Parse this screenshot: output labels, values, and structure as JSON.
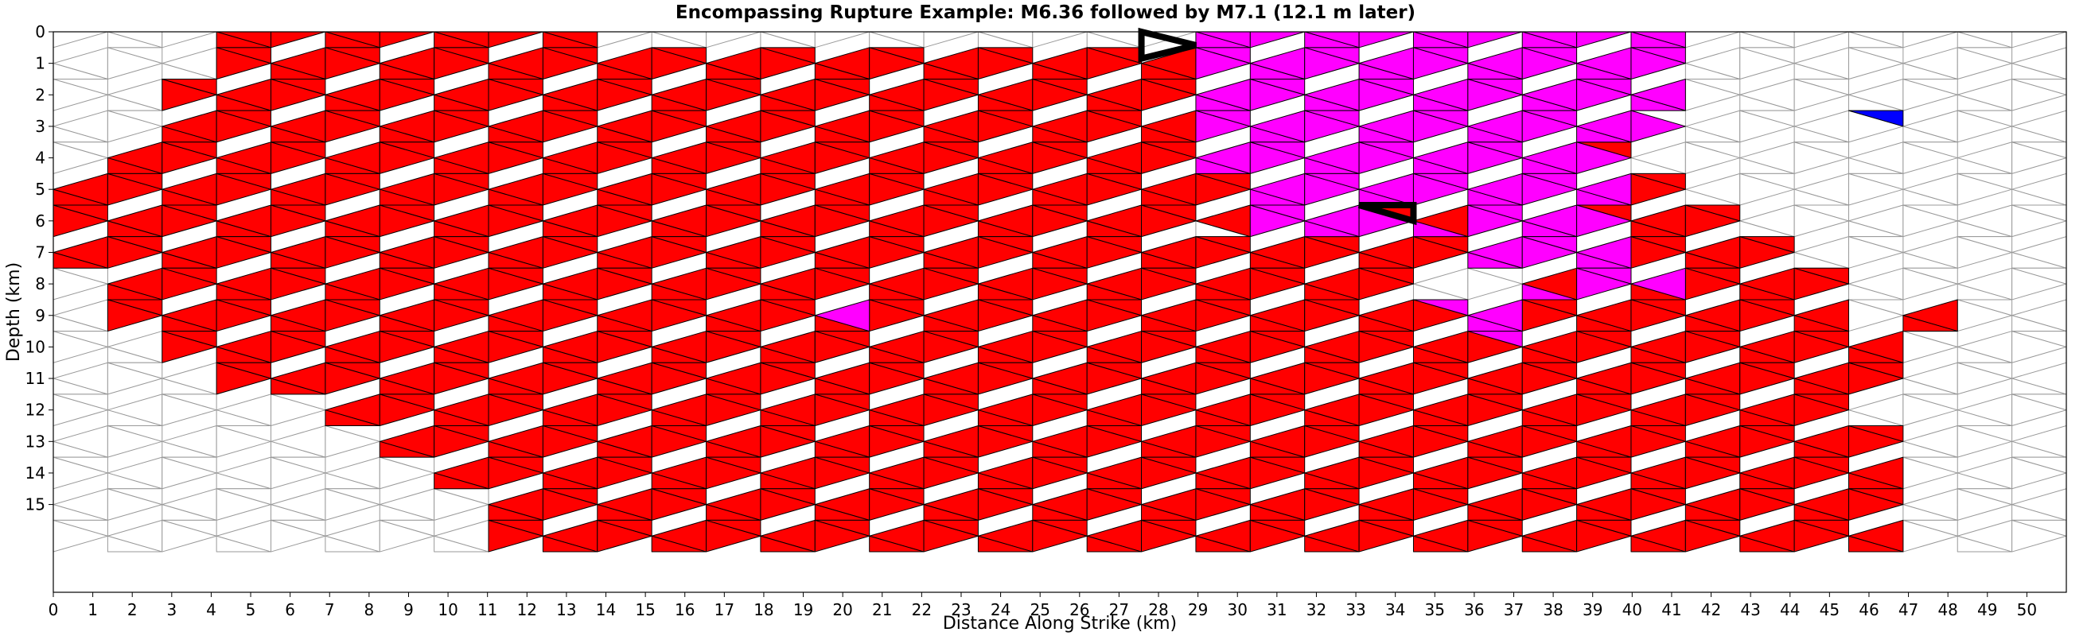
{
  "chart_data": {
    "type": "heatmap",
    "title": "Encompassing Rupture Example: M6.36 followed by M7.1 (12.1 m later)",
    "xlabel": "Distance Along Strike (km)",
    "ylabel": "Depth (km)",
    "xlim": [
      0,
      51
    ],
    "ylim": [
      15.6,
      0
    ],
    "xticks": [
      "0",
      "1",
      "2",
      "3",
      "4",
      "5",
      "6",
      "7",
      "8",
      "9",
      "10",
      "11",
      "12",
      "13",
      "14",
      "15",
      "16",
      "17",
      "18",
      "19",
      "20",
      "21",
      "22",
      "23",
      "24",
      "25",
      "26",
      "27",
      "28",
      "29",
      "30",
      "31",
      "32",
      "33",
      "34",
      "35",
      "36",
      "37",
      "38",
      "39",
      "40",
      "41",
      "42",
      "43",
      "44",
      "45",
      "46",
      "47",
      "48",
      "49",
      "50"
    ],
    "yticks": [
      "0",
      "1",
      "2",
      "3",
      "4",
      "5",
      "6",
      "7",
      "8",
      "9",
      "10",
      "11",
      "12",
      "13",
      "14",
      "15"
    ],
    "colors": {
      "red": "#ff0000",
      "magenta": "#ff00ff",
      "blue": "#0000ff",
      "white": "#ffffff",
      "red_edge": "#000000",
      "white_edge": "#999999",
      "marker": "#000000"
    },
    "mesh": {
      "columns": 37,
      "rows": 17,
      "col_width_km": 1.39,
      "row_height_km": 0.9
    },
    "regions": {
      "red_col_ranges": [
        [
          3,
          9
        ],
        [
          3,
          28
        ],
        [
          2,
          28
        ],
        [
          2,
          28
        ],
        [
          1,
          28
        ],
        [
          0,
          29
        ],
        [
          0,
          30
        ],
        [
          0,
          31
        ],
        [
          1,
          32
        ],
        [
          1,
          32
        ],
        [
          2,
          33
        ],
        [
          3,
          33
        ],
        [
          5,
          33
        ],
        [
          6,
          33
        ],
        [
          7,
          33
        ],
        [
          8,
          33
        ],
        [
          8,
          33
        ]
      ],
      "magenta_triangles": [
        [
          0,
          21,
          "d"
        ],
        [
          0,
          21,
          "u"
        ],
        [
          0,
          22,
          "d"
        ],
        [
          0,
          22,
          "u"
        ],
        [
          0,
          23,
          "d"
        ],
        [
          0,
          23,
          "u"
        ],
        [
          0,
          24,
          "d"
        ],
        [
          0,
          24,
          "u"
        ],
        [
          0,
          25,
          "d"
        ],
        [
          0,
          25,
          "u"
        ],
        [
          0,
          26,
          "d"
        ],
        [
          0,
          26,
          "u"
        ],
        [
          0,
          27,
          "d"
        ],
        [
          0,
          27,
          "u"
        ],
        [
          0,
          28,
          "d"
        ],
        [
          0,
          28,
          "u"
        ],
        [
          0,
          29,
          "d"
        ],
        [
          0,
          29,
          "u"
        ],
        [
          1,
          21,
          "d"
        ],
        [
          1,
          21,
          "u"
        ],
        [
          1,
          22,
          "d"
        ],
        [
          1,
          22,
          "u"
        ],
        [
          1,
          23,
          "d"
        ],
        [
          1,
          23,
          "u"
        ],
        [
          1,
          24,
          "d"
        ],
        [
          1,
          24,
          "u"
        ],
        [
          1,
          25,
          "d"
        ],
        [
          1,
          25,
          "u"
        ],
        [
          1,
          26,
          "d"
        ],
        [
          1,
          26,
          "u"
        ],
        [
          1,
          27,
          "d"
        ],
        [
          1,
          27,
          "u"
        ],
        [
          1,
          28,
          "d"
        ],
        [
          1,
          28,
          "u"
        ],
        [
          1,
          29,
          "d"
        ],
        [
          1,
          29,
          "u"
        ],
        [
          2,
          21,
          "d"
        ],
        [
          2,
          21,
          "u"
        ],
        [
          2,
          22,
          "d"
        ],
        [
          2,
          22,
          "u"
        ],
        [
          2,
          23,
          "d"
        ],
        [
          2,
          23,
          "u"
        ],
        [
          2,
          24,
          "d"
        ],
        [
          2,
          24,
          "u"
        ],
        [
          2,
          25,
          "d"
        ],
        [
          2,
          25,
          "u"
        ],
        [
          2,
          26,
          "d"
        ],
        [
          2,
          26,
          "u"
        ],
        [
          2,
          27,
          "d"
        ],
        [
          2,
          27,
          "u"
        ],
        [
          2,
          28,
          "d"
        ],
        [
          2,
          28,
          "u"
        ],
        [
          2,
          29,
          "d"
        ],
        [
          2,
          29,
          "u"
        ],
        [
          3,
          21,
          "d"
        ],
        [
          3,
          21,
          "u"
        ],
        [
          3,
          22,
          "d"
        ],
        [
          3,
          22,
          "u"
        ],
        [
          3,
          23,
          "d"
        ],
        [
          3,
          23,
          "u"
        ],
        [
          3,
          24,
          "d"
        ],
        [
          3,
          24,
          "u"
        ],
        [
          3,
          25,
          "d"
        ],
        [
          3,
          25,
          "u"
        ],
        [
          3,
          26,
          "d"
        ],
        [
          3,
          26,
          "u"
        ],
        [
          3,
          27,
          "d"
        ],
        [
          3,
          27,
          "u"
        ],
        [
          3,
          28,
          "d"
        ],
        [
          3,
          28,
          "u"
        ],
        [
          3,
          29,
          "d"
        ],
        [
          4,
          21,
          "d"
        ],
        [
          4,
          21,
          "u"
        ],
        [
          4,
          22,
          "d"
        ],
        [
          4,
          22,
          "u"
        ],
        [
          4,
          23,
          "d"
        ],
        [
          4,
          23,
          "u"
        ],
        [
          4,
          24,
          "d"
        ],
        [
          4,
          24,
          "u"
        ],
        [
          4,
          25,
          "d"
        ],
        [
          4,
          25,
          "u"
        ],
        [
          4,
          26,
          "d"
        ],
        [
          4,
          26,
          "u"
        ],
        [
          4,
          27,
          "d"
        ],
        [
          4,
          27,
          "u"
        ],
        [
          4,
          28,
          "d"
        ],
        [
          5,
          22,
          "d"
        ],
        [
          5,
          22,
          "u"
        ],
        [
          5,
          23,
          "d"
        ],
        [
          5,
          23,
          "u"
        ],
        [
          5,
          24,
          "d"
        ],
        [
          5,
          24,
          "u"
        ],
        [
          5,
          25,
          "d"
        ],
        [
          5,
          25,
          "u"
        ],
        [
          5,
          26,
          "d"
        ],
        [
          5,
          26,
          "u"
        ],
        [
          5,
          27,
          "d"
        ],
        [
          5,
          27,
          "u"
        ],
        [
          5,
          28,
          "d"
        ],
        [
          5,
          28,
          "u"
        ],
        [
          6,
          22,
          "d"
        ],
        [
          6,
          22,
          "u"
        ],
        [
          6,
          23,
          "d"
        ],
        [
          6,
          23,
          "u"
        ],
        [
          6,
          24,
          "d"
        ],
        [
          6,
          25,
          "u"
        ],
        [
          6,
          26,
          "d"
        ],
        [
          6,
          26,
          "u"
        ],
        [
          6,
          27,
          "d"
        ],
        [
          6,
          27,
          "u"
        ],
        [
          6,
          28,
          "d"
        ],
        [
          7,
          26,
          "d"
        ],
        [
          7,
          26,
          "u"
        ],
        [
          7,
          27,
          "d"
        ],
        [
          7,
          27,
          "u"
        ],
        [
          7,
          28,
          "d"
        ],
        [
          7,
          28,
          "u"
        ],
        [
          8,
          27,
          "u"
        ],
        [
          8,
          28,
          "d"
        ],
        [
          8,
          28,
          "u"
        ],
        [
          8,
          29,
          "d"
        ],
        [
          9,
          14,
          "d"
        ],
        [
          9,
          25,
          "u"
        ],
        [
          9,
          26,
          "d"
        ],
        [
          9,
          26,
          "u"
        ],
        [
          10,
          26,
          "u"
        ]
      ],
      "white_triangles": [
        [
          0,
          32,
          "d"
        ],
        [
          0,
          32,
          "u"
        ],
        [
          0,
          33,
          "d"
        ],
        [
          0,
          33,
          "u"
        ],
        [
          1,
          33,
          "d"
        ],
        [
          1,
          33,
          "u"
        ],
        [
          2,
          33,
          "d"
        ],
        [
          6,
          21,
          "u"
        ],
        [
          8,
          25,
          "d"
        ],
        [
          8,
          25,
          "u"
        ],
        [
          8,
          26,
          "d"
        ],
        [
          8,
          26,
          "u"
        ],
        [
          12,
          33,
          "d"
        ],
        [
          12,
          33,
          "u"
        ]
      ],
      "blue_triangles": [
        [
          3,
          33,
          "u"
        ]
      ],
      "extra_red_triangles": [
        [
          9,
          34,
          "d"
        ],
        [
          9,
          34,
          "u"
        ]
      ]
    },
    "markers": [
      {
        "name": "M6.36 hypocenter",
        "triangle": [
          0,
          20,
          "u"
        ],
        "facing": "right"
      },
      {
        "name": "M7.1 hypocenter",
        "triangle": [
          6,
          24,
          "u"
        ],
        "facing": "left"
      }
    ]
  }
}
